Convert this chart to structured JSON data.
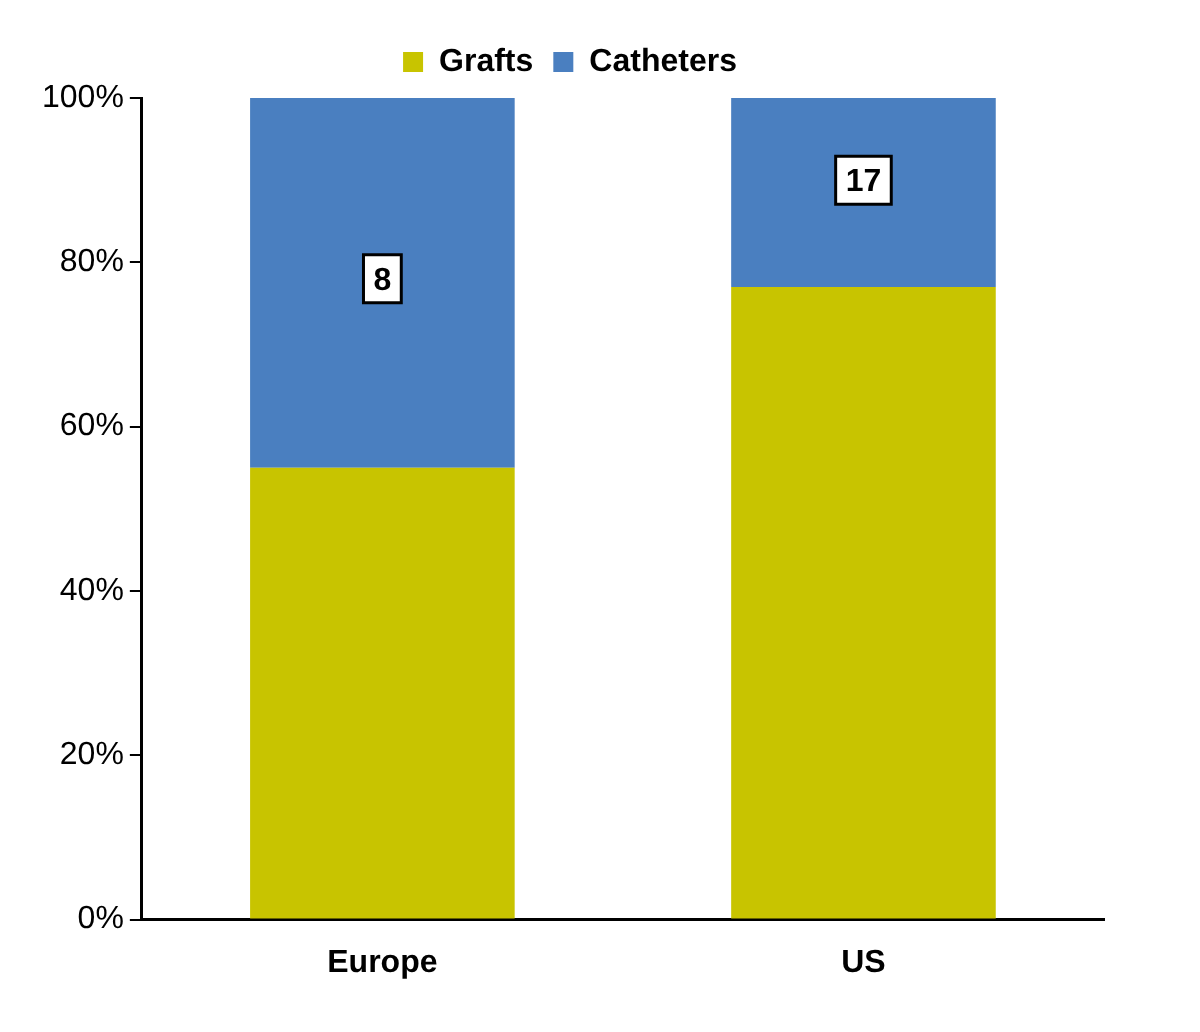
{
  "chart_data": {
    "type": "bar",
    "stacked": true,
    "categories": [
      "Europe",
      "US"
    ],
    "series": [
      {
        "name": "Grafts",
        "color": "#c8c400",
        "values": [
          55,
          77
        ]
      },
      {
        "name": "Catheters",
        "color": "#4a7fc0",
        "values": [
          45,
          23
        ]
      }
    ],
    "annotations": [
      {
        "text": "8",
        "x": "Europe",
        "y": 78
      },
      {
        "text": "17",
        "x": "US",
        "y": 90
      }
    ],
    "ylim": [
      0,
      100
    ],
    "yticks": [
      {
        "value": 0,
        "label": "0%"
      },
      {
        "value": 20,
        "label": "20%"
      },
      {
        "value": 40,
        "label": "40%"
      },
      {
        "value": 60,
        "label": "60%"
      },
      {
        "value": 80,
        "label": "80%"
      },
      {
        "value": 100,
        "label": "100%"
      }
    ],
    "grid": false,
    "legend": "top"
  }
}
